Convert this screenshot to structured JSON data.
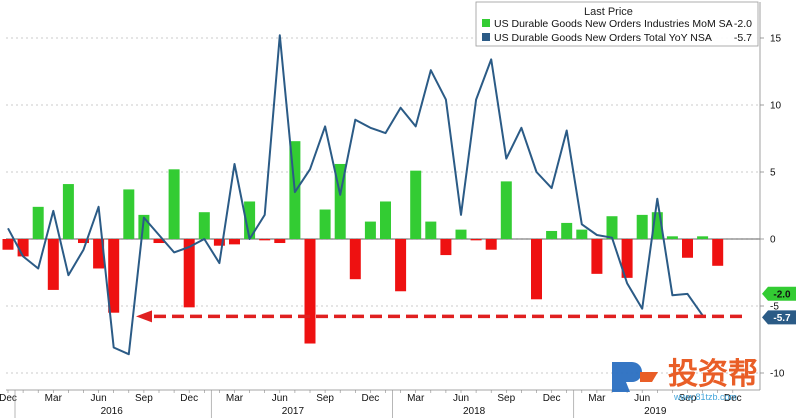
{
  "chart_data": {
    "type": "bar+line",
    "legend": {
      "title": "Last Price",
      "entries": [
        {
          "name": "US Durable Goods New Orders Industries MoM SA",
          "last": "-2.0",
          "color": "#33cc33"
        },
        {
          "name": "US Durable Goods New Orders Total YoY NSA",
          "last": "-5.7",
          "color": "#2b5b86"
        }
      ]
    },
    "ylim": [
      -10,
      17
    ],
    "yticks": [
      "-10",
      "-5",
      "0",
      "5",
      "10",
      "15"
    ],
    "x_month_labels": [
      "Dec",
      "Mar",
      "Jun",
      "Sep",
      "Dec",
      "Mar",
      "Jun",
      "Sep",
      "Dec",
      "Mar",
      "Jun",
      "Sep",
      "Dec",
      "Mar",
      "Jun",
      "Sep",
      "Dec"
    ],
    "x_year_labels": [
      "2016",
      "2017",
      "2018",
      "2019"
    ],
    "months": [
      "2015-12",
      "2016-01",
      "2016-02",
      "2016-03",
      "2016-04",
      "2016-05",
      "2016-06",
      "2016-07",
      "2016-08",
      "2016-09",
      "2016-10",
      "2016-11",
      "2016-12",
      "2017-01",
      "2017-02",
      "2017-03",
      "2017-04",
      "2017-05",
      "2017-06",
      "2017-07",
      "2017-08",
      "2017-09",
      "2017-10",
      "2017-11",
      "2017-12",
      "2018-01",
      "2018-02",
      "2018-03",
      "2018-04",
      "2018-05",
      "2018-06",
      "2018-07",
      "2018-08",
      "2018-09",
      "2018-10",
      "2018-11",
      "2018-12",
      "2019-01",
      "2019-02",
      "2019-03",
      "2019-04",
      "2019-05",
      "2019-06",
      "2019-07",
      "2019-08",
      "2019-09",
      "2019-10",
      "2019-11",
      "2019-12"
    ],
    "series": [
      {
        "name": "US Durable Goods New Orders Industries MoM SA",
        "kind": "bar",
        "positive_color": "#33cc33",
        "negative_color": "#ee1111",
        "values": [
          -0.8,
          -1.3,
          2.4,
          -3.8,
          4.1,
          -0.3,
          -2.2,
          -5.5,
          3.7,
          1.8,
          -0.3,
          5.2,
          -5.1,
          2.0,
          -0.5,
          -0.4,
          2.8,
          -0.1,
          -0.3,
          7.3,
          -7.8,
          2.2,
          5.6,
          -3.0,
          1.3,
          2.8,
          -3.9,
          5.1,
          1.3,
          -1.2,
          0.7,
          -0.1,
          -0.8,
          4.3,
          0.0,
          -4.5,
          0.6,
          1.2,
          0.7,
          -2.6,
          1.7,
          -2.9,
          1.8,
          2.0,
          0.2,
          -1.4,
          0.2,
          -2.0,
          0.0
        ]
      },
      {
        "name": "US Durable Goods New Orders Total YoY NSA",
        "kind": "line",
        "color": "#2b5b86",
        "values": [
          0.8,
          -1.3,
          -2.2,
          2.1,
          -2.7,
          -0.8,
          2.4,
          -8.1,
          -8.6,
          1.6,
          0.3,
          -1.0,
          -0.6,
          0.0,
          -1.8,
          5.6,
          0.0,
          1.8,
          15.2,
          3.5,
          5.2,
          8.4,
          3.3,
          8.9,
          8.3,
          7.9,
          9.8,
          8.4,
          12.6,
          10.4,
          1.8,
          10.4,
          13.4,
          6.0,
          8.3,
          5.0,
          3.8,
          8.1,
          1.1,
          0.3,
          0.1,
          -3.3,
          -5.2,
          3.0,
          -4.2,
          -4.1,
          -5.7,
          null,
          null
        ]
      }
    ],
    "last_value_labels": [
      "-2.0",
      "-5.7"
    ],
    "annotation": "dashed red arrow pointing left at the -5.7 level"
  },
  "watermark": {
    "text": "投资帮",
    "subtext": "www.81tzb.com"
  }
}
